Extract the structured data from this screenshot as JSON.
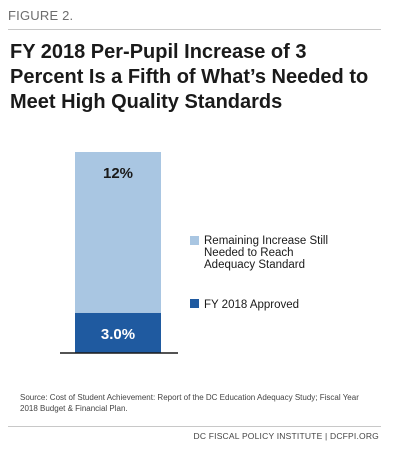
{
  "figure_label": "FIGURE 2.",
  "title": "FY 2018 Per-Pupil Increase of 3 Percent Is a Fifth of What’s Needed to Meet High Quality Standards",
  "chart_data": {
    "type": "bar",
    "stacked": true,
    "categories": [
      ""
    ],
    "series": [
      {
        "name": "FY 2018 Approved",
        "values": [
          3.0
        ],
        "label": "3.0%",
        "color": "#1f5aa0"
      },
      {
        "name": "Remaining Increase Still Needed to Reach Adequacy Standard",
        "values": [
          12
        ],
        "label": "12%",
        "color": "#a9c6e2"
      }
    ],
    "legend": [
      {
        "text": "Remaining Increase Still Needed to Reach Adequacy Standard",
        "lines": [
          "Remaining Increase Still",
          "Needed to Reach",
          "Adequacy Standard"
        ],
        "color": "#a9c6e2"
      },
      {
        "text": "FY 2018 Approved",
        "lines": [
          "FY 2018 Approved"
        ],
        "color": "#1f5aa0"
      }
    ],
    "legend_position": "right",
    "ylim": [
      0,
      15
    ],
    "grid": false
  },
  "source": "Source: Cost of Student Achievement: Report of the DC Education Adequacy Study; Fiscal Year 2018 Budget & Financial Plan.",
  "credit": "DC FISCAL POLICY INSTITUTE | DCFPI.ORG"
}
